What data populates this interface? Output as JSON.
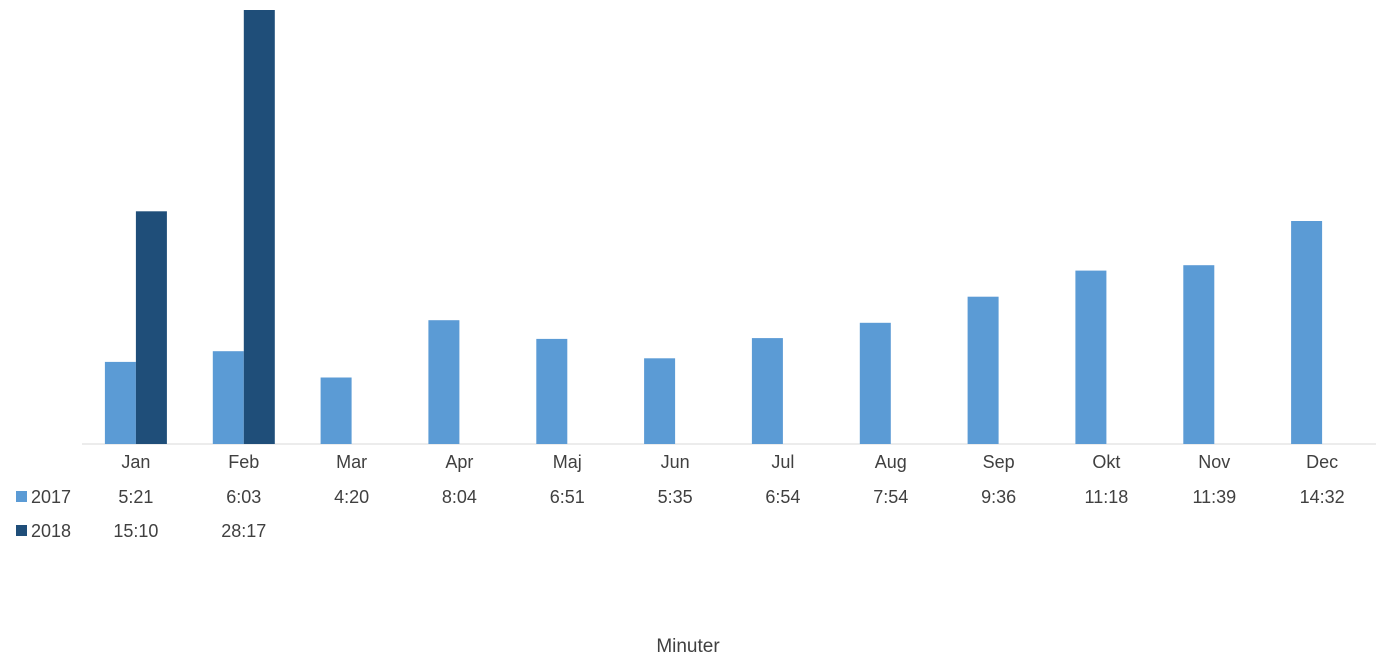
{
  "chart_data": {
    "type": "bar",
    "title": "",
    "xlabel": "Minuter",
    "ylabel": "",
    "categories": [
      "Jan",
      "Feb",
      "Mar",
      "Apr",
      "Maj",
      "Jun",
      "Jul",
      "Aug",
      "Sep",
      "Okt",
      "Nov",
      "Dec"
    ],
    "series": [
      {
        "name": "2017",
        "color": "#5b9bd5",
        "values": [
          321,
          363,
          260,
          484,
          411,
          335,
          414,
          474,
          576,
          678,
          699,
          872
        ],
        "labels": [
          "5:21",
          "6:03",
          "4:20",
          "8:04",
          "6:51",
          "5:35",
          "6:54",
          "7:54",
          "9:36",
          "11:18",
          "11:39",
          "14:32"
        ]
      },
      {
        "name": "2018",
        "color": "#1f4e79",
        "values": [
          910,
          1697,
          null,
          null,
          null,
          null,
          null,
          null,
          null,
          null,
          null,
          null
        ],
        "labels": [
          "15:10",
          "28:17",
          "",
          "",
          "",
          "",
          "",
          "",
          "",
          "",
          "",
          ""
        ]
      }
    ],
    "value_unit": "seconds",
    "ylim": [
      0,
      1697
    ],
    "grid": false,
    "legend": "data table"
  }
}
